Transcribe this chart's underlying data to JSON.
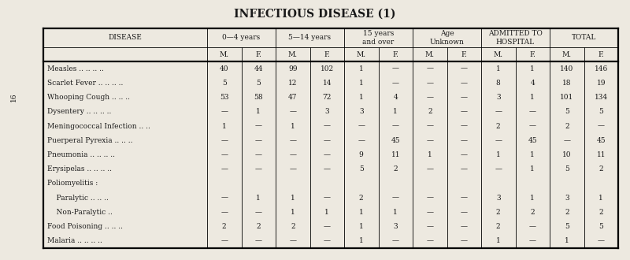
{
  "title": "INFECTIOUS DISEASE (1)",
  "group_headers": [
    "DISEASE",
    "0—4 years",
    "5—14 years",
    "15 years\nand over",
    "Age\nUnknown",
    "ADMITTED TO\nHOSPITAL",
    "TOTAL"
  ],
  "mf_headers": [
    "M.",
    "F.",
    "M.",
    "F.",
    "M.",
    "F.",
    "M.",
    "F.",
    "M.",
    "F.",
    "M.",
    "F."
  ],
  "rows": [
    [
      "Measles .. .. .. ..",
      "40",
      "44",
      "99",
      "102",
      "1",
      "—",
      "—",
      "—",
      "1",
      "1",
      "140",
      "146"
    ],
    [
      "Scarlet Fever .. .. .. ..",
      "5",
      "5",
      "12",
      "14",
      "1",
      "—",
      "—",
      "—",
      "8",
      "4",
      "18",
      "19"
    ],
    [
      "Whooping Cough .. .. ..",
      "53",
      "58",
      "47",
      "72",
      "1",
      "4",
      "—",
      "—",
      "3",
      "1",
      "101",
      "134"
    ],
    [
      "Dysentery .. .. .. ..",
      "—",
      "1",
      "—",
      "3",
      "3",
      "1",
      "2",
      "—",
      "—",
      "—",
      "5",
      "5"
    ],
    [
      "Meningococcal Infection .. ..",
      "1",
      "—",
      "1",
      "—",
      "—",
      "—",
      "—",
      "—",
      "2",
      "—",
      "2",
      "—"
    ],
    [
      "Puerperal Pyrexia .. .. ..",
      "—",
      "—",
      "—",
      "—",
      "—",
      "45",
      "—",
      "—",
      "—",
      "45",
      "—",
      "45"
    ],
    [
      "Pneumonia .. .. .. ..",
      "—",
      "—",
      "—",
      "—",
      "9",
      "11",
      "1",
      "—",
      "1",
      "1",
      "10",
      "11"
    ],
    [
      "Erysipelas .. .. .. ..",
      "—",
      "—",
      "—",
      "—",
      "5",
      "2",
      "—",
      "—",
      "—",
      "1",
      "5",
      "2"
    ],
    [
      "Poliomyelitis :",
      "",
      "",
      "",
      "",
      "",
      "",
      "",
      "",
      "",
      "",
      "",
      ""
    ],
    [
      "    Paralytic .. .. ..",
      "—",
      "1",
      "1",
      "—",
      "2",
      "—",
      "—",
      "—",
      "3",
      "1",
      "3",
      "1"
    ],
    [
      "    Non-Paralytic ..",
      "—",
      "—",
      "1",
      "1",
      "1",
      "1",
      "—",
      "—",
      "2",
      "2",
      "2",
      "2"
    ],
    [
      "Food Poisoning .. .. ..",
      "2",
      "2",
      "2",
      "—",
      "1",
      "3",
      "—",
      "—",
      "2",
      "—",
      "5",
      "5"
    ],
    [
      "Malaria .. .. .. ..",
      "—",
      "—",
      "—",
      "—",
      "1",
      "—",
      "—",
      "—",
      "1",
      "—",
      "1",
      "—"
    ]
  ],
  "bg_color": "#ede9e0",
  "lw_thick": 1.6,
  "lw_thin": 0.6,
  "font_size_title": 10,
  "font_size_header": 6.5,
  "font_size_data": 6.5,
  "page_num": "16"
}
